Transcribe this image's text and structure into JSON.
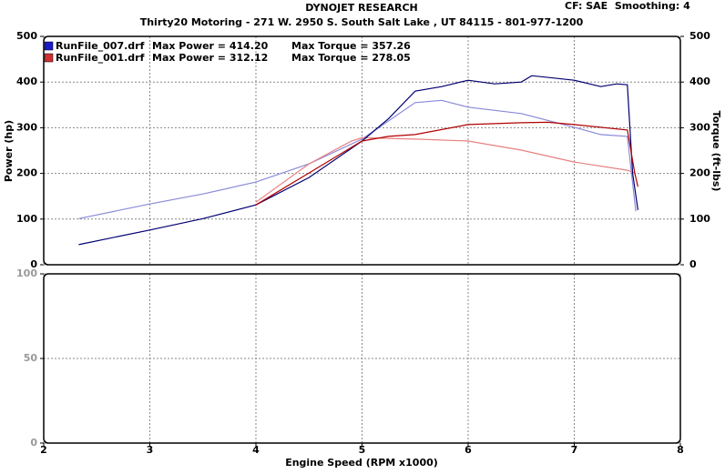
{
  "chart_data": [
    {
      "type": "line",
      "title": "DYNOJET RESEARCH",
      "subtitle": "Thirty20 Motoring - 271 W. 2950 S. South Salt Lake , UT 84115 - 801-977-1200",
      "note": "CF: SAE  Smoothing: 4",
      "ylabel": "Power (hp)",
      "y2label": "Torque (ft-lbs)",
      "xlim": [
        2,
        8
      ],
      "ylim": [
        0,
        500
      ],
      "yticks": [
        0,
        100,
        200,
        300,
        400,
        500
      ],
      "y2lim": [
        0,
        500
      ],
      "y2ticks": [
        0,
        100,
        200,
        300,
        400,
        500
      ],
      "grid": true,
      "legend": [
        {
          "label": "RunFile_007.drf",
          "max_power": "Max Power = 414.20",
          "max_torque": "Max Torque = 357.26",
          "color": "#1a1ac8"
        },
        {
          "label": "RunFile_001.drf",
          "max_power": "Max Power = 312.12",
          "max_torque": "Max Torque = 278.05",
          "color": "#d03030"
        }
      ],
      "series": [
        {
          "color": "#8a8ad8",
          "axis": "y2",
          "x": [
            2.33,
            3.0,
            3.5,
            4.0,
            4.5,
            5.0,
            5.5,
            5.75,
            6.0,
            6.5,
            7.0,
            7.25,
            7.5,
            7.58
          ],
          "values": [
            101,
            133,
            155,
            181,
            221,
            275,
            355,
            360,
            345,
            331,
            301,
            285,
            281,
            117
          ]
        },
        {
          "color": "#e88080",
          "axis": "y2",
          "x": [
            4.0,
            4.5,
            4.9,
            5.0,
            5.5,
            6.0,
            6.5,
            7.0,
            7.5,
            7.57
          ],
          "values": [
            137,
            221,
            271,
            278,
            275,
            271,
            251,
            225,
            207,
            201
          ]
        },
        {
          "color": "#000070",
          "x": [
            2.33,
            3.0,
            3.5,
            4.0,
            4.5,
            5.0,
            5.25,
            5.5,
            5.75,
            6.0,
            6.25,
            6.5,
            6.6,
            7.0,
            7.25,
            7.4,
            7.5,
            7.55,
            7.6
          ],
          "values": [
            44,
            76,
            101,
            131,
            191,
            271,
            320,
            380,
            390,
            404,
            396,
            400,
            414,
            404,
            390,
            396,
            394,
            200,
            120
          ]
        },
        {
          "color": "#b00000",
          "x": [
            4.0,
            4.5,
            5.0,
            5.25,
            5.5,
            6.0,
            6.5,
            6.75,
            7.0,
            7.5,
            7.57,
            7.6
          ],
          "values": [
            131,
            201,
            271,
            281,
            285,
            307,
            311,
            312,
            307,
            295,
            201,
            171
          ]
        }
      ]
    },
    {
      "type": "line",
      "xlabel": "Engine Speed (RPM x1000)",
      "xlim": [
        2,
        8
      ],
      "xticks": [
        2,
        3,
        4,
        5,
        6,
        7,
        8
      ],
      "ylim": [
        0,
        100
      ],
      "yticks": [
        0,
        50,
        100
      ],
      "grid": true,
      "series": []
    }
  ]
}
